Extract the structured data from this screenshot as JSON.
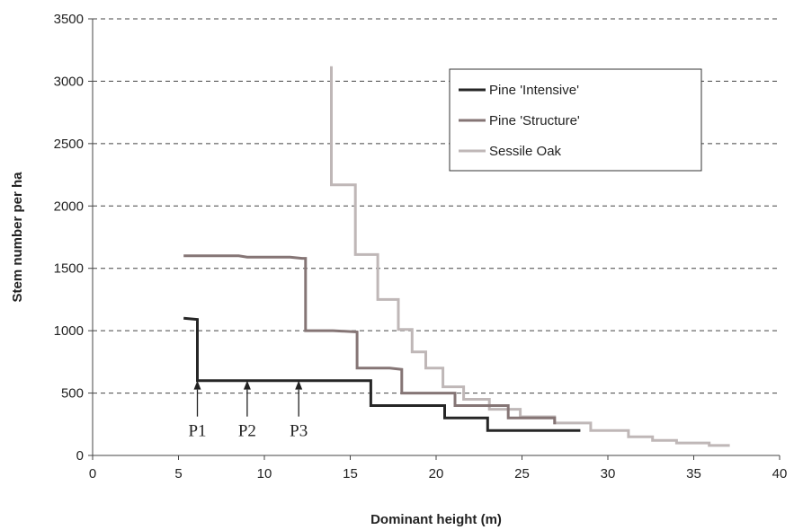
{
  "chart_data": {
    "type": "line",
    "xlabel": "Dominant height (m)",
    "ylabel": "Stem number per ha",
    "xlim": [
      0,
      40
    ],
    "ylim": [
      0,
      3500
    ],
    "xticks": [
      0,
      5,
      10,
      15,
      20,
      25,
      30,
      35,
      40
    ],
    "yticks": [
      0,
      500,
      1000,
      1500,
      2000,
      2500,
      3000,
      3500
    ],
    "grid": "horizontal dashed",
    "legend_position": "top-right",
    "series": [
      {
        "name": "Pine 'Intensive'",
        "color": "#262626",
        "x": [
          5.3,
          6.1,
          6.1,
          16.2,
          16.2,
          20.5,
          20.5,
          23.0,
          23.0,
          28.4
        ],
        "y": [
          1100,
          1090,
          600,
          600,
          400,
          400,
          300,
          300,
          200,
          200
        ]
      },
      {
        "name": "Pine 'Structure'",
        "color": "#857575",
        "x": [
          5.3,
          8.5,
          9.0,
          11.5,
          12.2,
          12.4,
          12.4,
          14.0,
          15.4,
          15.4,
          17.3,
          18.0,
          18.0,
          21.1,
          21.1,
          24.2,
          24.2,
          26.9,
          26.9
        ],
        "y": [
          1600,
          1600,
          1590,
          1590,
          1580,
          1580,
          1000,
          1000,
          990,
          700,
          700,
          690,
          500,
          500,
          400,
          400,
          300,
          300,
          250
        ]
      },
      {
        "name": "Sessile Oak",
        "color": "#bfb7b7",
        "x": [
          13.9,
          13.9,
          15.3,
          15.3,
          16.6,
          16.6,
          17.8,
          17.8,
          18.6,
          18.6,
          19.4,
          19.4,
          20.4,
          20.4,
          21.6,
          21.6,
          23.1,
          23.1,
          24.9,
          24.9,
          26.9,
          26.9,
          29.0,
          29.0,
          31.2,
          31.2,
          32.6,
          32.6,
          34.0,
          34.0,
          35.9,
          35.9,
          37.1
        ],
        "y": [
          3120,
          2170,
          2170,
          1610,
          1610,
          1250,
          1250,
          1010,
          1010,
          830,
          830,
          700,
          700,
          550,
          550,
          450,
          450,
          370,
          370,
          310,
          310,
          260,
          260,
          200,
          200,
          150,
          150,
          120,
          120,
          100,
          100,
          80,
          80
        ]
      }
    ],
    "annotations": [
      {
        "label": "P1",
        "x": 6.1,
        "y": 600
      },
      {
        "label": "P2",
        "x": 9.0,
        "y": 600
      },
      {
        "label": "P3",
        "x": 12.0,
        "y": 600
      }
    ]
  }
}
